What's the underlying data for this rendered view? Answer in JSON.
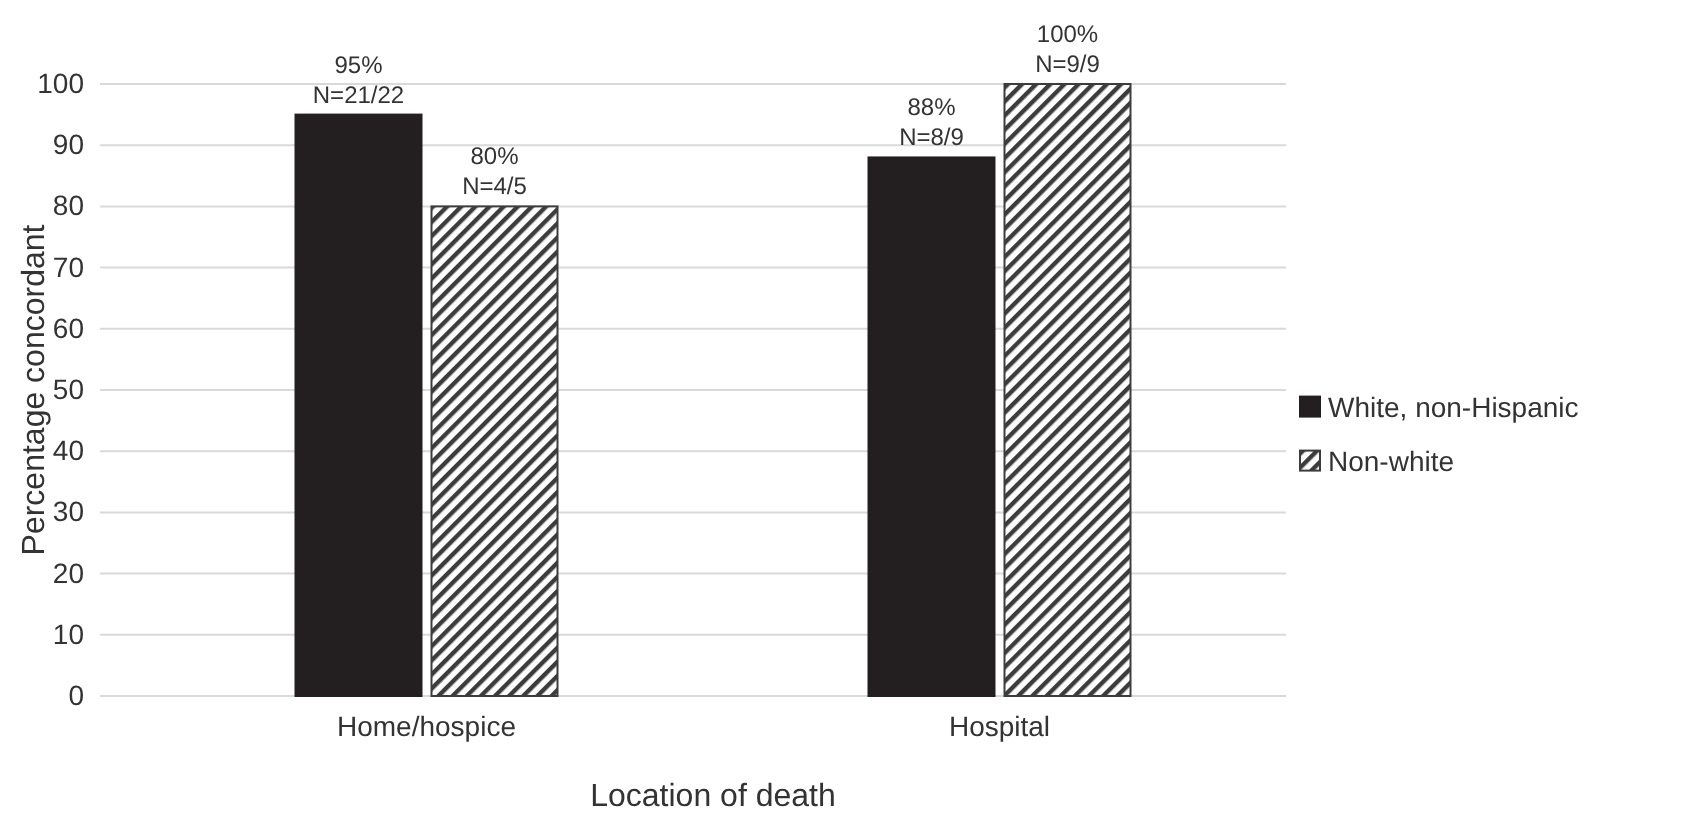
{
  "chart_data": {
    "type": "bar",
    "xlabel": "Location of death",
    "ylabel": "Percentage concordant",
    "categories": [
      "Home/hospice",
      "Hospital"
    ],
    "series": [
      {
        "name": "White, non-Hispanic",
        "color": "#231f20",
        "values": [
          95,
          88
        ],
        "value_labels": [
          "95%\nN=21/22",
          "88%\nN=8/9"
        ]
      },
      {
        "name": "Non-white",
        "color": "#3c3c3c",
        "values": [
          80,
          100
        ],
        "value_labels": [
          "80%\nN=4/5",
          "100%\nN=9/9"
        ]
      }
    ],
    "ylim": [
      0,
      100
    ],
    "yticks": [
      0,
      10,
      20,
      30,
      40,
      50,
      60,
      70,
      80,
      90,
      100
    ],
    "grid": "y",
    "legend": "right"
  }
}
